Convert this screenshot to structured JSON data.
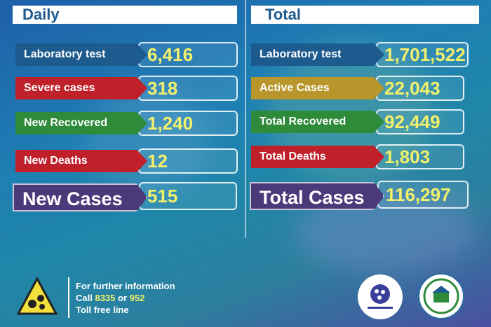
{
  "daily": {
    "title": "Daily",
    "rows": [
      {
        "label": "Laboratory test",
        "value": "6,416",
        "color": "#1d5a8e"
      },
      {
        "label": "Severe cases",
        "value": "318",
        "color": "#c0202a"
      },
      {
        "label": "New Recovered",
        "value": "1,240",
        "color": "#2e8b3a"
      },
      {
        "label": "New Deaths",
        "value": "12",
        "color": "#c0202a"
      }
    ],
    "new_cases": {
      "label": "New Cases",
      "value": "515",
      "color": "#4b3a7a"
    }
  },
  "total": {
    "title": "Total",
    "rows": [
      {
        "label": "Laboratory test",
        "value": "1,701,522",
        "color": "#1d5a8e"
      },
      {
        "label": "Active Cases",
        "value": "22,043",
        "color": "#b8962c"
      },
      {
        "label": "Total Recovered",
        "value": "92,449",
        "color": "#2e8b3a"
      },
      {
        "label": "Total Deaths",
        "value": "1,803",
        "color": "#c0202a"
      }
    ],
    "total_cases": {
      "label": "Total Cases",
      "value": "116,297",
      "color": "#4b3a7a"
    }
  },
  "footer": {
    "line1": "For further information",
    "call_prefix": "Call",
    "number1": "8335",
    "or": "or",
    "number2": "952",
    "line3": "Toll free line"
  }
}
